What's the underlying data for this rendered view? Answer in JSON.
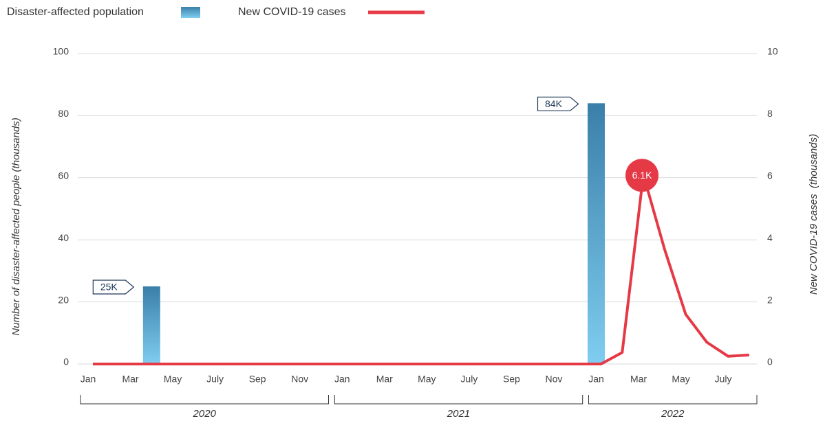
{
  "chart_data": {
    "type": "bar_line",
    "categories": [
      "Jan",
      null,
      "Mar",
      null,
      "May",
      null,
      "July",
      null,
      "Sep",
      null,
      "Nov",
      null,
      "Jan",
      null,
      "Mar",
      null,
      "May",
      null,
      "July",
      null,
      "Sep",
      null,
      "Nov",
      null,
      "Jan",
      null,
      "Mar",
      null,
      "May",
      null,
      "July",
      null
    ],
    "years": [
      "2020",
      "2021",
      "2022"
    ],
    "series": [
      {
        "name": "Disaster-affected population",
        "type": "bar",
        "color": "#2f7fb8",
        "values": [
          null,
          null,
          null,
          25,
          null,
          null,
          null,
          null,
          null,
          null,
          null,
          null,
          null,
          null,
          null,
          null,
          null,
          null,
          null,
          null,
          null,
          null,
          null,
          null,
          84,
          null,
          null,
          null,
          null,
          null,
          null,
          null
        ],
        "value_labels": [
          null,
          null,
          null,
          "25K",
          null,
          null,
          null,
          null,
          null,
          null,
          null,
          null,
          null,
          null,
          null,
          null,
          null,
          null,
          null,
          null,
          null,
          null,
          null,
          null,
          "84K",
          null,
          null,
          null,
          null,
          null,
          null,
          null
        ]
      },
      {
        "name": "New COVID-19 cases",
        "type": "line",
        "axis": "y2",
        "color": "#e63946",
        "values": [
          0,
          0,
          0,
          0,
          0,
          0,
          0,
          0,
          0,
          0,
          0,
          0,
          0,
          0,
          0,
          0,
          0,
          0,
          0,
          0,
          0,
          0,
          0,
          0,
          0,
          0.37,
          6.1,
          3.7,
          1.6,
          0.7,
          0.25,
          0.29
        ],
        "value_labels": [
          null,
          null,
          null,
          null,
          null,
          null,
          null,
          null,
          null,
          null,
          null,
          null,
          null,
          null,
          null,
          null,
          null,
          null,
          null,
          null,
          null,
          null,
          null,
          null,
          null,
          null,
          "6.1K",
          null,
          null,
          null,
          null,
          null
        ]
      }
    ],
    "y_label": "Number of disaster-affected people (thousands)",
    "y2_label": "New COVID-19 cases  (thousands)",
    "ylim": [
      0,
      100
    ],
    "yticks": [
      0,
      20,
      40,
      60,
      80,
      100
    ],
    "y2lim": [
      0,
      10
    ],
    "y2ticks": [
      0,
      2,
      4,
      6,
      8,
      10
    ],
    "grid": true,
    "legend": "top-left"
  }
}
